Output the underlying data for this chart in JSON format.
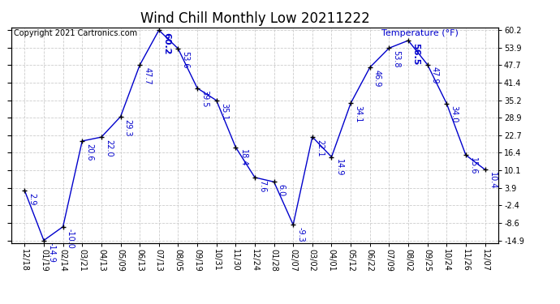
{
  "title": "Wind Chill Monthly Low 20211222",
  "copyright": "Copyright 2021 Cartronics.com",
  "ylabel_right": "Temperature (°F)",
  "x_labels": [
    "12/18",
    "01/19",
    "02/14",
    "03/21",
    "04/13",
    "05/09",
    "06/13",
    "07/13",
    "08/05",
    "09/19",
    "10/31",
    "11/30",
    "12/24",
    "01/28",
    "02/07",
    "03/02",
    "04/01",
    "05/12",
    "06/22",
    "07/09",
    "08/02",
    "09/25",
    "10/24",
    "11/26",
    "12/07"
  ],
  "values": [
    2.9,
    -14.9,
    -10.0,
    20.6,
    22.0,
    29.3,
    47.7,
    60.2,
    53.6,
    39.5,
    35.1,
    18.4,
    7.6,
    6.0,
    -9.3,
    22.1,
    14.9,
    34.1,
    46.9,
    53.8,
    56.5,
    47.9,
    34.0,
    15.6,
    10.4
  ],
  "ylim_min": -14.9,
  "ylim_max": 60.2,
  "yticks": [
    -14.9,
    -8.6,
    -2.4,
    3.9,
    10.1,
    16.4,
    22.7,
    28.9,
    35.2,
    41.4,
    47.7,
    53.9,
    60.2
  ],
  "line_color": "#0000cc",
  "marker_color": "#000000",
  "grid_color": "#cccccc",
  "background_color": "#ffffff",
  "title_fontsize": 12,
  "label_fontsize": 7,
  "annot_fontsize": 7,
  "copyright_fontsize": 7,
  "temp_label_fontsize": 8
}
